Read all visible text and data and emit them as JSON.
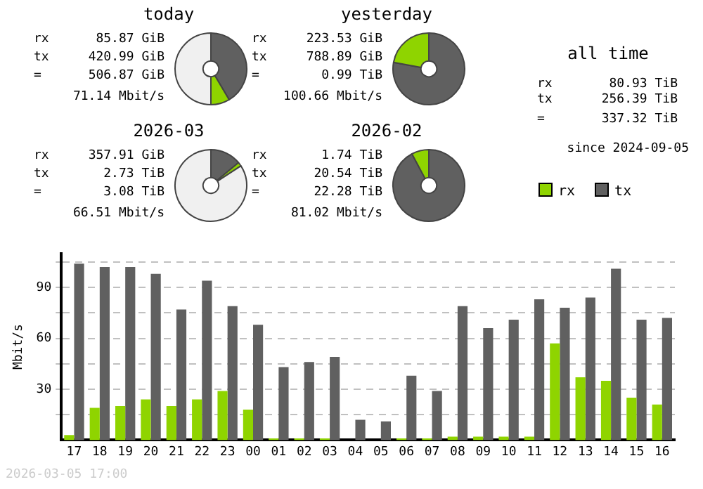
{
  "chart_data": [
    {
      "type": "donut",
      "title": "today",
      "categories": [
        null,
        null,
        null
      ],
      "values": [
        41.5,
        8.5,
        50
      ],
      "colors": [
        "#606060",
        "#8fd400",
        "#f0f0f0"
      ],
      "annotations": [
        "rx 85.87 GiB",
        "tx 420.99 GiB",
        "= 506.87 GiB",
        "71.14 Mbit/s"
      ]
    },
    {
      "type": "donut",
      "title": "yesterday",
      "categories": [
        null,
        null
      ],
      "values": [
        77.9,
        22.1
      ],
      "colors": [
        "#606060",
        "#8fd400"
      ],
      "annotations": [
        "rx 223.53 GiB",
        "tx 788.89 GiB",
        "= 0.99 TiB",
        "100.66 Mbit/s"
      ]
    },
    {
      "type": "other",
      "title": "all time",
      "annotations": [
        "rx 80.93 TiB",
        "tx 256.39 TiB",
        "= 337.32 TiB",
        "since 2024-09-05"
      ]
    },
    {
      "type": "donut",
      "title": "2026-03",
      "categories": [
        null,
        null,
        null
      ],
      "values": [
        14.0,
        1.8,
        84.2
      ],
      "colors": [
        "#606060",
        "#8fd400",
        "#f0f0f0"
      ],
      "annotations": [
        "rx 357.91 GiB",
        "tx 2.73 TiB",
        "= 3.08 TiB",
        "66.51 Mbit/s"
      ]
    },
    {
      "type": "donut",
      "title": "2026-02",
      "categories": [
        null,
        null
      ],
      "values": [
        92.2,
        7.8
      ],
      "colors": [
        "#606060",
        "#8fd400"
      ],
      "annotations": [
        "rx 1.74 TiB",
        "tx 20.54 TiB",
        "= 22.28 TiB",
        "81.02 Mbit/s"
      ]
    },
    {
      "type": "bar",
      "ylabel": "Mbit/s",
      "categories": [
        "17",
        "18",
        "19",
        "20",
        "21",
        "22",
        "23",
        "00",
        "01",
        "02",
        "03",
        "04",
        "05",
        "06",
        "07",
        "08",
        "09",
        "10",
        "11",
        "12",
        "13",
        "14",
        "15",
        "16"
      ],
      "series": [
        {
          "name": "rx",
          "color": "#8fd400",
          "values": [
            3,
            19,
            20,
            24,
            20,
            24,
            29,
            18,
            1,
            1,
            1,
            0,
            0,
            1,
            1,
            2,
            2,
            2,
            2,
            57,
            37,
            35,
            25,
            21
          ]
        },
        {
          "name": "tx",
          "color": "#606060",
          "values": [
            104,
            102,
            102,
            98,
            77,
            94,
            79,
            68,
            43,
            46,
            49,
            12,
            11,
            38,
            29,
            79,
            66,
            71,
            83,
            78,
            84,
            101,
            71,
            72
          ]
        }
      ],
      "ylim": [
        0,
        110
      ],
      "yticks": [
        {
          "value": 15,
          "label": null
        },
        30,
        {
          "value": 45,
          "label": null
        },
        60,
        {
          "value": 75,
          "label": null
        },
        90,
        {
          "value": 105,
          "label": null
        }
      ],
      "grid": "y",
      "legend": "top right",
      "annotations": [
        "2026-03-05 17:00"
      ]
    }
  ]
}
